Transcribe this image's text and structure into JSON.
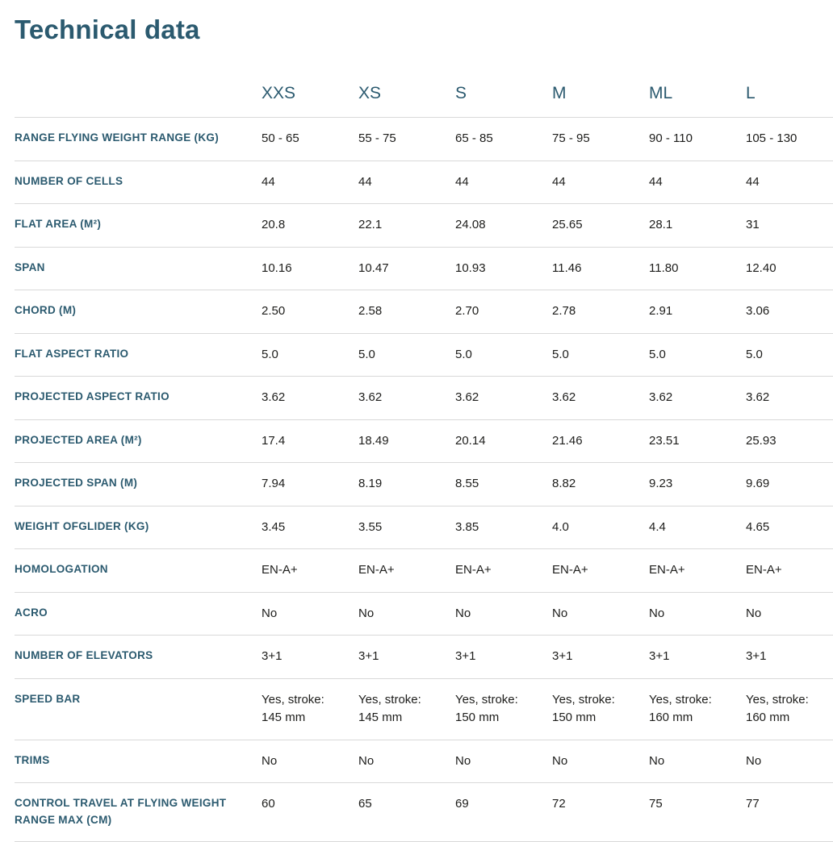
{
  "page": {
    "title": "Technical data"
  },
  "table": {
    "columns": [
      "XXS",
      "XS",
      "S",
      "M",
      "ML",
      "L"
    ],
    "rows": [
      {
        "label": "RANGE FLYING WEIGHT RANGE (KG)",
        "values": [
          "50 - 65",
          "55 - 75",
          "65 - 85",
          "75 - 95",
          "90 - 110",
          "105 - 130"
        ]
      },
      {
        "label": "NUMBER OF CELLS",
        "values": [
          "44",
          "44",
          "44",
          "44",
          "44",
          "44"
        ]
      },
      {
        "label": "FLAT AREA (M²)",
        "values": [
          "20.8",
          "22.1",
          "24.08",
          "25.65",
          "28.1",
          "31"
        ]
      },
      {
        "label": "SPAN",
        "values": [
          "10.16",
          "10.47",
          "10.93",
          "11.46",
          "11.80",
          "12.40"
        ]
      },
      {
        "label": "CHORD (M)",
        "values": [
          "2.50",
          "2.58",
          "2.70",
          "2.78",
          "2.91",
          "3.06"
        ]
      },
      {
        "label": "FLAT ASPECT RATIO",
        "values": [
          "5.0",
          "5.0",
          "5.0",
          "5.0",
          "5.0",
          "5.0"
        ]
      },
      {
        "label": "PROJECTED ASPECT RATIO",
        "values": [
          "3.62",
          "3.62",
          "3.62",
          "3.62",
          "3.62",
          "3.62"
        ]
      },
      {
        "label": "PROJECTED AREA (M²)",
        "values": [
          "17.4",
          "18.49",
          "20.14",
          "21.46",
          "23.51",
          "25.93"
        ]
      },
      {
        "label": "PROJECTED SPAN (M)",
        "values": [
          "7.94",
          "8.19",
          "8.55",
          "8.82",
          "9.23",
          "9.69"
        ]
      },
      {
        "label": "WEIGHT OFGLIDER (KG)",
        "values": [
          "3.45",
          "3.55",
          "3.85",
          "4.0",
          "4.4",
          "4.65"
        ]
      },
      {
        "label": "HOMOLOGATION",
        "values": [
          "EN-A+",
          "EN-A+",
          "EN-A+",
          "EN-A+",
          "EN-A+",
          "EN-A+"
        ]
      },
      {
        "label": "ACRO",
        "values": [
          "No",
          "No",
          "No",
          "No",
          "No",
          "No"
        ]
      },
      {
        "label": "NUMBER OF ELEVATORS",
        "values": [
          "3+1",
          "3+1",
          "3+1",
          "3+1",
          "3+1",
          "3+1"
        ]
      },
      {
        "label": "SPEED BAR",
        "values": [
          "Yes, stroke:\n145 mm",
          "Yes, stroke:\n145 mm",
          "Yes, stroke:\n150 mm",
          "Yes, stroke:\n150 mm",
          "Yes, stroke:\n160 mm",
          "Yes, stroke:\n160 mm"
        ]
      },
      {
        "label": "TRIMS",
        "values": [
          "No",
          "No",
          "No",
          "No",
          "No",
          "No"
        ]
      },
      {
        "label": "CONTROL TRAVEL AT FLYING WEIGHT RANGE MAX (CM)",
        "values": [
          "60",
          "65",
          "69",
          "72",
          "75",
          "77"
        ]
      }
    ]
  },
  "colors": {
    "heading_text": "#2b5a6f",
    "value_text": "#1d1d1b",
    "divider": "#d9d9d9",
    "background": "#ffffff"
  }
}
